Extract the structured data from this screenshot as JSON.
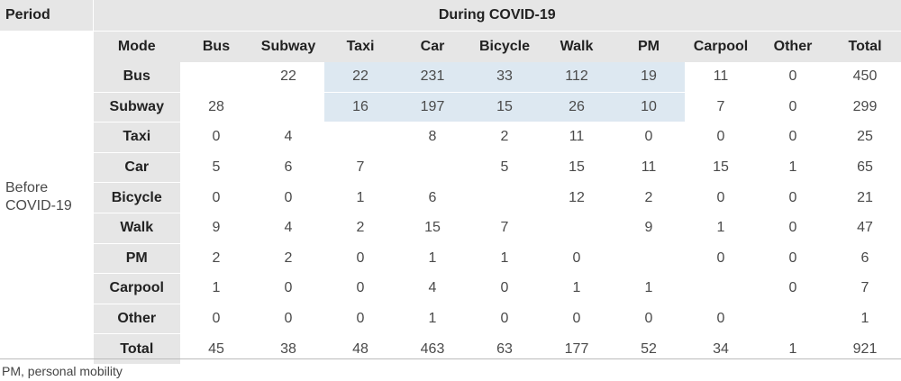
{
  "header": {
    "period_label": "Period",
    "during_label": "During COVID-19",
    "mode_label": "Mode",
    "before_label_line1": "Before",
    "before_label_line2": "COVID-19"
  },
  "columns": [
    "Bus",
    "Subway",
    "Taxi",
    "Car",
    "Bicycle",
    "Walk",
    "PM",
    "Carpool",
    "Other",
    "Total"
  ],
  "rows": [
    {
      "label": "Bus",
      "cells": [
        "",
        "22",
        "22",
        "231",
        "33",
        "112",
        "19",
        "11",
        "0",
        "450"
      ]
    },
    {
      "label": "Subway",
      "cells": [
        "28",
        "",
        "16",
        "197",
        "15",
        "26",
        "10",
        "7",
        "0",
        "299"
      ]
    },
    {
      "label": "Taxi",
      "cells": [
        "0",
        "4",
        "",
        "8",
        "2",
        "11",
        "0",
        "0",
        "0",
        "25"
      ]
    },
    {
      "label": "Car",
      "cells": [
        "5",
        "6",
        "7",
        "",
        "5",
        "15",
        "11",
        "15",
        "1",
        "65"
      ]
    },
    {
      "label": "Bicycle",
      "cells": [
        "0",
        "0",
        "1",
        "6",
        "",
        "12",
        "2",
        "0",
        "0",
        "21"
      ]
    },
    {
      "label": "Walk",
      "cells": [
        "9",
        "4",
        "2",
        "15",
        "7",
        "",
        "9",
        "1",
        "0",
        "47"
      ]
    },
    {
      "label": "PM",
      "cells": [
        "2",
        "2",
        "0",
        "1",
        "1",
        "0",
        "",
        "0",
        "0",
        "6"
      ]
    },
    {
      "label": "Carpool",
      "cells": [
        "1",
        "0",
        "0",
        "4",
        "0",
        "1",
        "1",
        "",
        "0",
        "7"
      ]
    },
    {
      "label": "Other",
      "cells": [
        "0",
        "0",
        "0",
        "1",
        "0",
        "0",
        "0",
        "0",
        "",
        "1"
      ]
    },
    {
      "label": "Total",
      "cells": [
        "45",
        "38",
        "48",
        "463",
        "63",
        "177",
        "52",
        "34",
        "1",
        "921"
      ]
    }
  ],
  "highlight": {
    "rows": [
      "Bus",
      "Subway"
    ],
    "columns": [
      "Taxi",
      "Car",
      "Bicycle",
      "Walk",
      "PM"
    ],
    "color": "#dde8f1"
  },
  "colors": {
    "header_gray": "#e6e6e6",
    "highlight_blue": "#dde8f1"
  },
  "footnote": "PM, personal mobility"
}
